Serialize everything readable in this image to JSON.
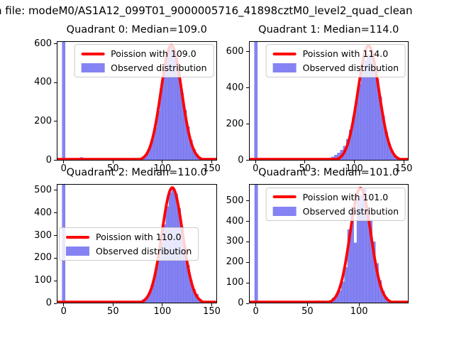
{
  "figure": {
    "suptitle": "n file: modeM0/AS1A12_099T01_9000005716_41898cztM0_level2_quad_clean",
    "colors": {
      "hist_fill": "#8583f3",
      "hist_edge": "#6b68e0",
      "fit_line": "#ff0000",
      "spine": "#000000",
      "legend_bg": "rgba(255,255,255,0.82)",
      "legend_border": "#cccccc"
    }
  },
  "chart_data": [
    {
      "type": "bar",
      "title": "Quadrant 0: Median=109.0",
      "median": 109.0,
      "legend": [
        {
          "label": "Poission with 109.0",
          "marker": "line"
        },
        {
          "label": "Observed distribution",
          "marker": "patch"
        }
      ],
      "legend_loc": "upper right",
      "xlim": [
        -7,
        155
      ],
      "ylim": [
        0,
        615
      ],
      "xticks": [
        0,
        50,
        100,
        150
      ],
      "yticks": [
        0,
        200,
        400,
        600
      ],
      "fit": {
        "mu": 109,
        "amplitude": 595
      },
      "bin_width": 3,
      "bars": [
        [
          0,
          615
        ],
        [
          15,
          6
        ],
        [
          18,
          16
        ],
        [
          21,
          9
        ],
        [
          33,
          6
        ],
        [
          45,
          3
        ],
        [
          60,
          3
        ],
        [
          66,
          4
        ],
        [
          69,
          4
        ],
        [
          72,
          5
        ],
        [
          75,
          8
        ],
        [
          78,
          12
        ],
        [
          81,
          18
        ],
        [
          84,
          32
        ],
        [
          87,
          60
        ],
        [
          90,
          105
        ],
        [
          93,
          170
        ],
        [
          96,
          255
        ],
        [
          99,
          370
        ],
        [
          102,
          460
        ],
        [
          105,
          545
        ],
        [
          108,
          588
        ],
        [
          111,
          580
        ],
        [
          114,
          525
        ],
        [
          117,
          448
        ],
        [
          120,
          345
        ],
        [
          123,
          260
        ],
        [
          126,
          175
        ],
        [
          129,
          105
        ],
        [
          132,
          58
        ],
        [
          135,
          32
        ],
        [
          138,
          15
        ],
        [
          141,
          7
        ],
        [
          144,
          4
        ],
        [
          147,
          2
        ]
      ]
    },
    {
      "type": "bar",
      "title": "Quadrant 1: Median=114.0",
      "median": 114.0,
      "legend": [
        {
          "label": "Poission with 114.0",
          "marker": "line"
        },
        {
          "label": "Observed distribution",
          "marker": "patch"
        }
      ],
      "legend_loc": "upper right",
      "xlim": [
        -7,
        155
      ],
      "ylim": [
        0,
        660
      ],
      "xticks": [
        0,
        50,
        100,
        150
      ],
      "yticks": [
        0,
        200,
        400,
        600
      ],
      "fit": {
        "mu": 114,
        "amplitude": 635
      },
      "bin_width": 3,
      "bars": [
        [
          0,
          660
        ],
        [
          42,
          3
        ],
        [
          57,
          4
        ],
        [
          60,
          5
        ],
        [
          63,
          6
        ],
        [
          66,
          7
        ],
        [
          69,
          6
        ],
        [
          72,
          9
        ],
        [
          75,
          14
        ],
        [
          78,
          20
        ],
        [
          81,
          30
        ],
        [
          84,
          42
        ],
        [
          87,
          58
        ],
        [
          90,
          80
        ],
        [
          93,
          118
        ],
        [
          96,
          170
        ],
        [
          99,
          240
        ],
        [
          102,
          328
        ],
        [
          105,
          422
        ],
        [
          108,
          500
        ],
        [
          111,
          552
        ],
        [
          114,
          585
        ],
        [
          117,
          578
        ],
        [
          120,
          528
        ],
        [
          123,
          450
        ],
        [
          126,
          352
        ],
        [
          129,
          246
        ],
        [
          132,
          158
        ],
        [
          135,
          92
        ],
        [
          138,
          52
        ],
        [
          141,
          26
        ],
        [
          144,
          12
        ],
        [
          147,
          6
        ],
        [
          150,
          3
        ]
      ]
    },
    {
      "type": "bar",
      "title": "Quadrant 2: Median=110.0",
      "median": 110.0,
      "legend": [
        {
          "label": "Poission with 110.0",
          "marker": "line"
        },
        {
          "label": "Observed distribution",
          "marker": "patch"
        }
      ],
      "legend_loc": "center left",
      "xlim": [
        -7,
        155
      ],
      "ylim": [
        0,
        528
      ],
      "xticks": [
        0,
        50,
        100,
        150
      ],
      "yticks": [
        0,
        100,
        200,
        300,
        400,
        500
      ],
      "fit": {
        "mu": 110,
        "amplitude": 512
      },
      "bin_width": 3,
      "bars": [
        [
          0,
          528
        ],
        [
          63,
          5
        ],
        [
          66,
          9
        ],
        [
          69,
          6
        ],
        [
          72,
          5
        ],
        [
          75,
          7
        ],
        [
          78,
          11
        ],
        [
          81,
          17
        ],
        [
          84,
          28
        ],
        [
          87,
          48
        ],
        [
          90,
          82
        ],
        [
          93,
          132
        ],
        [
          96,
          196
        ],
        [
          99,
          268
        ],
        [
          102,
          348
        ],
        [
          105,
          428
        ],
        [
          108,
          490
        ],
        [
          111,
          508
        ],
        [
          114,
          485
        ],
        [
          117,
          420
        ],
        [
          120,
          338
        ],
        [
          123,
          252
        ],
        [
          126,
          168
        ],
        [
          129,
          102
        ],
        [
          132,
          62
        ],
        [
          135,
          40
        ],
        [
          138,
          20
        ],
        [
          141,
          10
        ],
        [
          144,
          5
        ],
        [
          147,
          3
        ]
      ]
    },
    {
      "type": "bar",
      "title": "Quadrant 3: Median=101.0",
      "median": 101.0,
      "legend": [
        {
          "label": "Poission with 101.0",
          "marker": "line"
        },
        {
          "label": "Observed distribution",
          "marker": "patch"
        }
      ],
      "legend_loc": "upper right",
      "xlim": [
        -7,
        148
      ],
      "ylim": [
        0,
        582
      ],
      "xticks": [
        0,
        50,
        100
      ],
      "yticks": [
        0,
        100,
        200,
        300,
        400,
        500
      ],
      "fit": {
        "mu": 101,
        "amplitude": 562
      },
      "bin_width": 3,
      "bars": [
        [
          0,
          582
        ],
        [
          57,
          6
        ],
        [
          60,
          13
        ],
        [
          63,
          8
        ],
        [
          66,
          6
        ],
        [
          69,
          9
        ],
        [
          72,
          15
        ],
        [
          75,
          27
        ],
        [
          78,
          38
        ],
        [
          81,
          62
        ],
        [
          84,
          105
        ],
        [
          87,
          175
        ],
        [
          90,
          360
        ],
        [
          93,
          465
        ],
        [
          96,
          295
        ],
        [
          99,
          508
        ],
        [
          102,
          528
        ],
        [
          105,
          560
        ],
        [
          108,
          465
        ],
        [
          111,
          408
        ],
        [
          114,
          300
        ],
        [
          117,
          195
        ],
        [
          120,
          112
        ],
        [
          123,
          60
        ],
        [
          126,
          30
        ],
        [
          129,
          14
        ],
        [
          132,
          7
        ],
        [
          135,
          4
        ]
      ]
    }
  ]
}
